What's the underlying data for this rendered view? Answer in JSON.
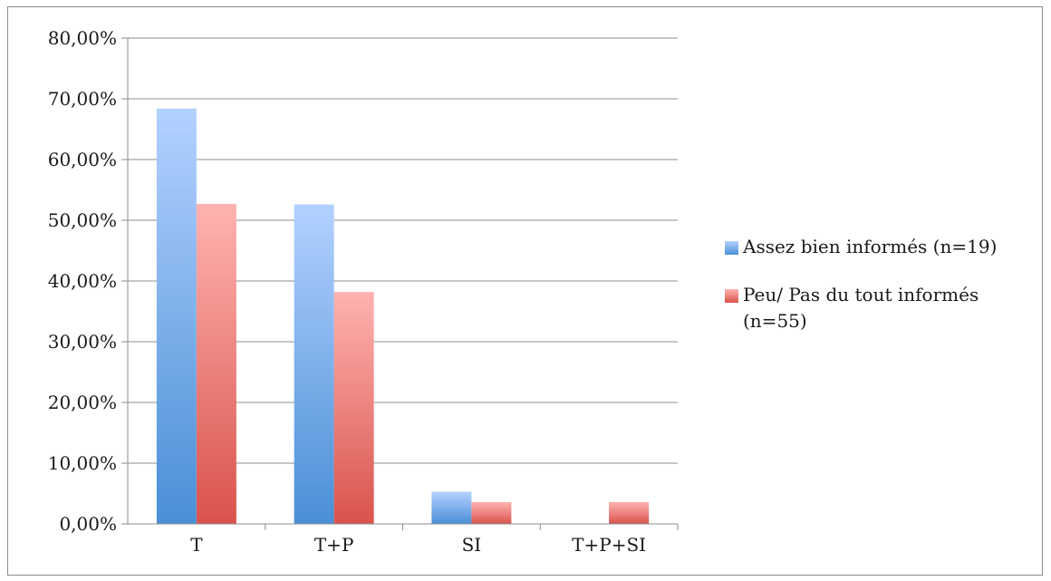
{
  "chart_data": {
    "type": "bar",
    "categories": [
      "T",
      "T+P",
      "SI",
      "T+P+SI"
    ],
    "series": [
      {
        "name": "Assez bien informés (n=19)",
        "values": [
          68.4,
          52.6,
          5.3,
          0
        ],
        "color_top": "#b3d1ff",
        "color_bottom": "#4a8fd6"
      },
      {
        "name": "Peu/ Pas du tout informés (n=55)",
        "values": [
          52.7,
          38.2,
          3.6,
          3.6
        ],
        "color_top": "#ffb3b0",
        "color_bottom": "#d9534c"
      }
    ],
    "y_tick_labels": [
      "0,00%",
      "10,00%",
      "20,00%",
      "30,00%",
      "40,00%",
      "50,00%",
      "60,00%",
      "70,00%",
      "80,00%"
    ],
    "ylim": [
      0,
      80
    ],
    "y_step": 10,
    "grid": true,
    "legend_position": "right",
    "gridline_color": "#8c8c8c",
    "title": "",
    "xlabel": "",
    "ylabel": ""
  },
  "legend": {
    "item1_line1": "Assez bien informés (n=19)",
    "item2_line1": "Peu/ Pas du tout informés",
    "item2_line2": "(n=55)"
  }
}
